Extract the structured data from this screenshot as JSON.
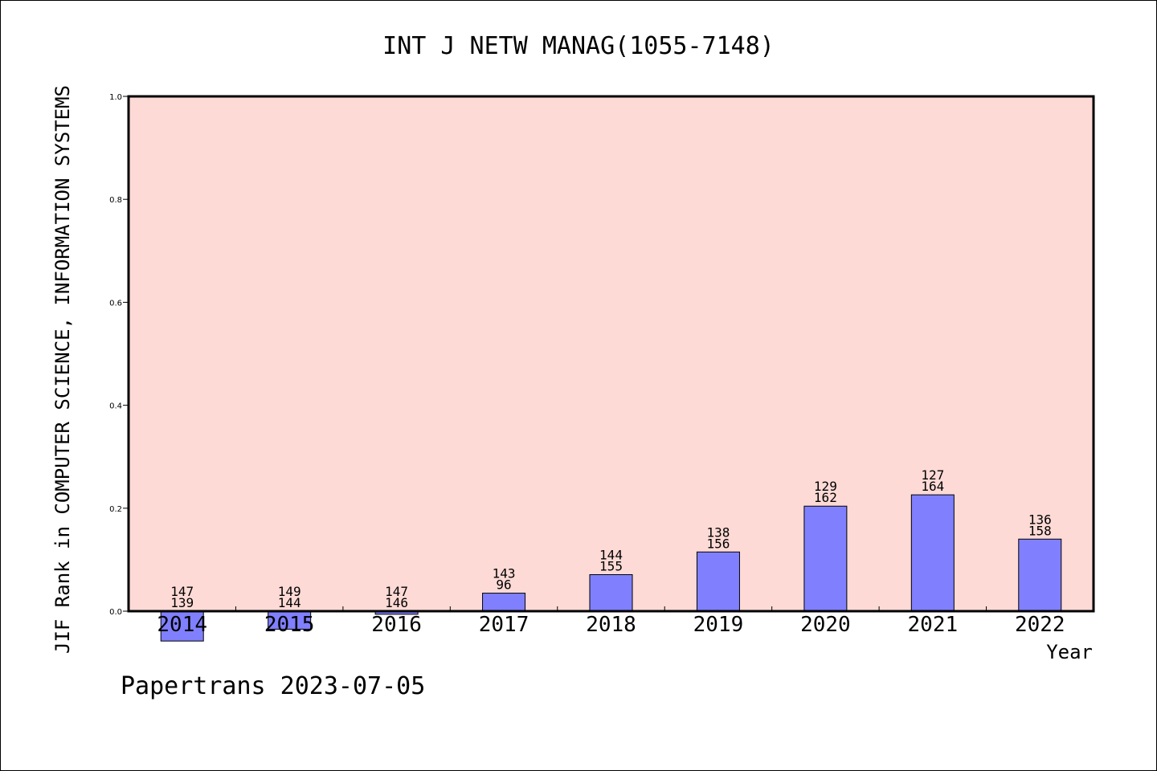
{
  "chart_data": {
    "type": "bar",
    "title": "INT J NETW MANAG(1055-7148)",
    "xlabel": "Year",
    "ylabel": "JIF Rank in COMPUTER SCIENCE, INFORMATION SYSTEMS",
    "ylim": [
      0,
      1.0
    ],
    "y_ticks": [
      "0.0",
      "0.2",
      "0.4",
      "0.6",
      "0.8",
      "1.0"
    ],
    "categories": [
      "2014",
      "2015",
      "2016",
      "2017",
      "2018",
      "2019",
      "2020",
      "2021",
      "2022"
    ],
    "values": [
      -0.058,
      -0.035,
      -0.006,
      0.035,
      0.071,
      0.115,
      0.204,
      0.226,
      0.14
    ],
    "rank_labels": [
      "147",
      "149",
      "147",
      "143",
      "144",
      "138",
      "129",
      "127",
      "136"
    ],
    "total_labels": [
      "139",
      "144",
      "146",
      "96",
      "155",
      "156",
      "162",
      "164",
      "158"
    ],
    "grid": false,
    "colors": {
      "plot_background": "#fddad6",
      "bar_fill": "#8080ff",
      "bar_stroke": "#000000"
    }
  },
  "footer": {
    "watermark": "Papertrans 2023-07-05"
  }
}
